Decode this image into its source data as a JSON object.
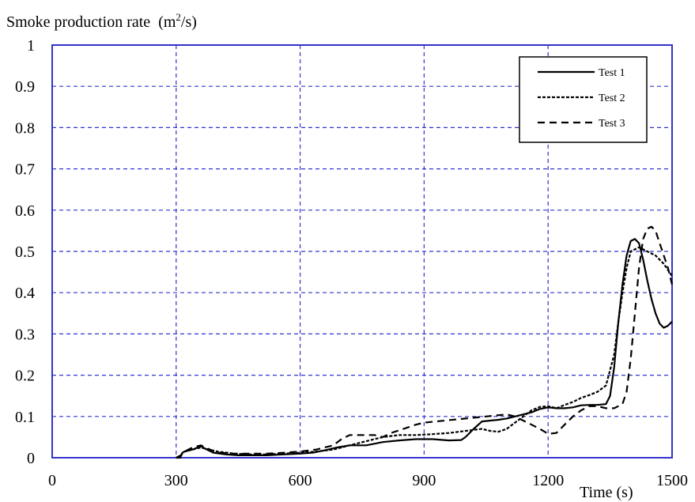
{
  "chart_data": {
    "type": "line",
    "title": "",
    "ylabel": "Smoke production rate",
    "ylabel_unit_base": "(m",
    "ylabel_unit_sup": "2",
    "ylabel_unit_tail": "/s)",
    "xlabel": "Time (s)",
    "xlim": [
      0,
      1500
    ],
    "ylim": [
      0,
      1
    ],
    "xticks": [
      0,
      300,
      600,
      900,
      1200,
      1500
    ],
    "xtick_labels": [
      "0",
      "300",
      "600",
      "900",
      "1200",
      "1500"
    ],
    "yticks": [
      0,
      0.1,
      0.2,
      0.3,
      0.4,
      0.5,
      0.6,
      0.7,
      0.8,
      0.9,
      1
    ],
    "ytick_labels": [
      "0",
      "0.1",
      "0.2",
      "0.3",
      "0.4",
      "0.5",
      "0.6",
      "0.7",
      "0.8",
      "0.9",
      "1"
    ],
    "grid": true,
    "grid_color": "#3333cc",
    "axis_color": "#3333cc",
    "legend_position": "top-right",
    "series": [
      {
        "name": "Test 1",
        "style": "solid",
        "x": [
          300,
          310,
          315,
          320,
          340,
          360,
          370,
          390,
          420,
          450,
          480,
          520,
          560,
          600,
          630,
          660,
          690,
          720,
          760,
          800,
          840,
          880,
          920,
          960,
          990,
          1000,
          1020,
          1040,
          1060,
          1080,
          1100,
          1120,
          1140,
          1160,
          1180,
          1200,
          1220,
          1240,
          1260,
          1280,
          1300,
          1320,
          1340,
          1350,
          1360,
          1370,
          1380,
          1390,
          1400,
          1410,
          1420,
          1430,
          1440,
          1450,
          1460,
          1470,
          1480,
          1490,
          1500
        ],
        "y": [
          0.0,
          0.0,
          0.012,
          0.015,
          0.02,
          0.028,
          0.022,
          0.012,
          0.008,
          0.006,
          0.006,
          0.006,
          0.008,
          0.01,
          0.012,
          0.018,
          0.025,
          0.03,
          0.03,
          0.038,
          0.042,
          0.045,
          0.045,
          0.042,
          0.043,
          0.05,
          0.07,
          0.088,
          0.09,
          0.092,
          0.095,
          0.1,
          0.105,
          0.11,
          0.118,
          0.122,
          0.12,
          0.12,
          0.122,
          0.127,
          0.128,
          0.128,
          0.13,
          0.15,
          0.22,
          0.33,
          0.42,
          0.49,
          0.525,
          0.53,
          0.52,
          0.48,
          0.43,
          0.385,
          0.35,
          0.325,
          0.315,
          0.32,
          0.33
        ]
      },
      {
        "name": "Test 2",
        "style": "dotted",
        "x": [
          300,
          310,
          320,
          340,
          360,
          370,
          400,
          440,
          480,
          520,
          560,
          600,
          640,
          680,
          700,
          720,
          760,
          800,
          840,
          880,
          920,
          960,
          1000,
          1040,
          1060,
          1080,
          1100,
          1120,
          1140,
          1160,
          1180,
          1200,
          1220,
          1240,
          1260,
          1280,
          1300,
          1320,
          1340,
          1360,
          1370,
          1380,
          1390,
          1400,
          1410,
          1420,
          1440,
          1460,
          1480,
          1490,
          1500
        ],
        "y": [
          0.0,
          0.005,
          0.015,
          0.02,
          0.025,
          0.022,
          0.015,
          0.01,
          0.008,
          0.008,
          0.01,
          0.012,
          0.015,
          0.02,
          0.025,
          0.03,
          0.04,
          0.05,
          0.055,
          0.055,
          0.057,
          0.06,
          0.065,
          0.07,
          0.065,
          0.063,
          0.07,
          0.085,
          0.1,
          0.115,
          0.123,
          0.125,
          0.12,
          0.128,
          0.135,
          0.145,
          0.152,
          0.16,
          0.175,
          0.25,
          0.33,
          0.4,
          0.46,
          0.5,
          0.505,
          0.51,
          0.5,
          0.49,
          0.47,
          0.455,
          0.44
        ]
      },
      {
        "name": "Test 3",
        "style": "dashed",
        "x": [
          300,
          310,
          320,
          340,
          360,
          370,
          400,
          440,
          480,
          520,
          560,
          600,
          640,
          680,
          700,
          720,
          760,
          780,
          800,
          820,
          850,
          880,
          900,
          950,
          1000,
          1050,
          1100,
          1120,
          1140,
          1160,
          1180,
          1200,
          1220,
          1240,
          1260,
          1280,
          1300,
          1320,
          1340,
          1360,
          1380,
          1390,
          1400,
          1410,
          1420,
          1430,
          1440,
          1450,
          1460,
          1470,
          1480,
          1490,
          1500
        ],
        "y": [
          0.0,
          0.005,
          0.015,
          0.025,
          0.03,
          0.025,
          0.012,
          0.01,
          0.01,
          0.01,
          0.012,
          0.015,
          0.02,
          0.03,
          0.045,
          0.055,
          0.055,
          0.055,
          0.05,
          0.06,
          0.07,
          0.08,
          0.085,
          0.09,
          0.095,
          0.1,
          0.105,
          0.1,
          0.09,
          0.08,
          0.07,
          0.058,
          0.06,
          0.08,
          0.1,
          0.115,
          0.125,
          0.125,
          0.12,
          0.12,
          0.13,
          0.16,
          0.24,
          0.35,
          0.46,
          0.53,
          0.555,
          0.56,
          0.55,
          0.52,
          0.49,
          0.46,
          0.42
        ]
      }
    ]
  }
}
